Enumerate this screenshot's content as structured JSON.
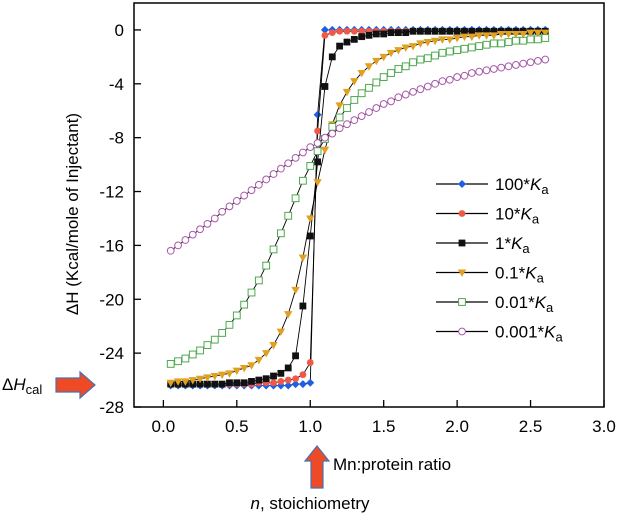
{
  "chart_data": {
    "type": "scatter",
    "xlabel": "Mn:protein ratio",
    "ylabel": "ΔH (Kcal/mole of Injectant)",
    "xlim": [
      -0.2,
      3.0
    ],
    "ylim": [
      -28,
      2
    ],
    "x_ticks": [
      "0.0",
      "0.5",
      "1.0",
      "1.5",
      "2.0",
      "2.5",
      "3.0"
    ],
    "x_tick_values": [
      0,
      0.5,
      1.0,
      1.5,
      2.0,
      2.5,
      3.0
    ],
    "y_ticks": [
      "0",
      "-4",
      "-8",
      "-12",
      "-16",
      "-20",
      "-24",
      "-28"
    ],
    "y_tick_values": [
      0,
      -4,
      -8,
      -12,
      -16,
      -20,
      -24,
      -28
    ],
    "grid": false,
    "legend_position": "right",
    "annotations": {
      "dh_cal": {
        "prefix": "Δ",
        "italic": "H",
        "sub": "cal",
        "y_value": -26.1
      },
      "stoichiometry": {
        "italic": "n",
        "text": ", stoichiometry",
        "x_value": 1.0
      }
    },
    "x": [
      0.05,
      0.1,
      0.15,
      0.2,
      0.25,
      0.3,
      0.35,
      0.4,
      0.45,
      0.5,
      0.55,
      0.6,
      0.65,
      0.7,
      0.75,
      0.8,
      0.85,
      0.9,
      0.95,
      1.0,
      1.05,
      1.1,
      1.15,
      1.2,
      1.25,
      1.3,
      1.35,
      1.4,
      1.45,
      1.5,
      1.55,
      1.6,
      1.65,
      1.7,
      1.75,
      1.8,
      1.85,
      1.9,
      1.95,
      2.0,
      2.05,
      2.1,
      2.15,
      2.2,
      2.25,
      2.3,
      2.35,
      2.4,
      2.45,
      2.5,
      2.55,
      2.6
    ],
    "series": [
      {
        "name": "100*",
        "ka": "K",
        "sub": "a",
        "color": "#1f5fe0",
        "marker": "diamond-filled",
        "values": [
          -26.4,
          -26.4,
          -26.4,
          -26.4,
          -26.4,
          -26.4,
          -26.4,
          -26.4,
          -26.4,
          -26.4,
          -26.4,
          -26.4,
          -26.4,
          -26.4,
          -26.4,
          -26.4,
          -26.4,
          -26.3,
          -26.3,
          -26.2,
          -6.3,
          0,
          0,
          0,
          0,
          0,
          0,
          0,
          0,
          0,
          0,
          0,
          0,
          0,
          0,
          0,
          0,
          0,
          0,
          0,
          0,
          0,
          0,
          0,
          0,
          0,
          0,
          0,
          0,
          0,
          0,
          0
        ]
      },
      {
        "name": "10*",
        "ka": "K",
        "sub": "a",
        "color": "#ee5a45",
        "marker": "circle-filled",
        "values": [
          -26.3,
          -26.3,
          -26.3,
          -26.3,
          -26.3,
          -26.3,
          -26.3,
          -26.3,
          -26.3,
          -26.3,
          -26.3,
          -26.3,
          -26.2,
          -26.2,
          -26.2,
          -26.1,
          -26.0,
          -25.9,
          -25.6,
          -24.7,
          -7.5,
          -0.4,
          -0.2,
          -0.1,
          -0.1,
          -0.1,
          -0.1,
          -0.1,
          -0.1,
          -0.1,
          -0.1,
          -0.1,
          -0.1,
          -0.1,
          -0.1,
          -0.1,
          -0.1,
          -0.1,
          -0.1,
          -0.1,
          -0.1,
          -0.1,
          -0.1,
          -0.1,
          -0.1,
          -0.1,
          -0.1,
          -0.1,
          -0.1,
          -0.1,
          -0.1,
          -0.1
        ]
      },
      {
        "name": "1*",
        "ka": "K",
        "sub": "a",
        "color": "#111111",
        "marker": "square-filled",
        "values": [
          -26.3,
          -26.3,
          -26.3,
          -26.3,
          -26.3,
          -26.3,
          -26.3,
          -26.3,
          -26.2,
          -26.2,
          -26.2,
          -26.1,
          -26.0,
          -25.9,
          -25.7,
          -25.5,
          -25.1,
          -24.2,
          -20.5,
          -15.3,
          -9.8,
          -4.2,
          -2.0,
          -1.2,
          -0.9,
          -0.7,
          -0.5,
          -0.4,
          -0.3,
          -0.3,
          -0.2,
          -0.2,
          -0.2,
          -0.1,
          -0.1,
          -0.1,
          -0.1,
          -0.1,
          -0.1,
          -0.1,
          -0.1,
          -0.1,
          -0.1,
          -0.1,
          -0.1,
          -0.1,
          -0.1,
          -0.1,
          -0.1,
          -0.1,
          -0.1,
          -0.1
        ]
      },
      {
        "name": "0.1*",
        "ka": "K",
        "sub": "a",
        "color": "#e0a020",
        "marker": "triangle-down-filled",
        "values": [
          -26.2,
          -26.1,
          -26.1,
          -26.0,
          -25.9,
          -25.8,
          -25.7,
          -25.6,
          -25.5,
          -25.3,
          -25.1,
          -24.9,
          -24.5,
          -24.0,
          -23.4,
          -22.4,
          -21.1,
          -19.3,
          -16.9,
          -14.0,
          -11.3,
          -8.9,
          -7.0,
          -5.6,
          -4.6,
          -3.8,
          -3.2,
          -2.7,
          -2.3,
          -2.0,
          -1.7,
          -1.5,
          -1.3,
          -1.2,
          -1.0,
          -0.9,
          -0.8,
          -0.7,
          -0.7,
          -0.6,
          -0.5,
          -0.5,
          -0.4,
          -0.4,
          -0.4,
          -0.3,
          -0.3,
          -0.3,
          -0.3,
          -0.2,
          -0.2,
          -0.2
        ]
      },
      {
        "name": "0.01*",
        "ka": "K",
        "sub": "a",
        "color": "#4fa84f",
        "marker": "square-open",
        "values": [
          -24.8,
          -24.6,
          -24.4,
          -24.1,
          -23.8,
          -23.4,
          -23.0,
          -22.5,
          -21.9,
          -21.2,
          -20.4,
          -19.5,
          -18.6,
          -17.5,
          -16.3,
          -15.1,
          -13.8,
          -12.5,
          -11.2,
          -10.1,
          -9.0,
          -8.1,
          -7.2,
          -6.5,
          -5.8,
          -5.2,
          -4.7,
          -4.3,
          -3.9,
          -3.5,
          -3.2,
          -2.9,
          -2.7,
          -2.4,
          -2.2,
          -2.1,
          -1.9,
          -1.7,
          -1.6,
          -1.5,
          -1.4,
          -1.3,
          -1.2,
          -1.1,
          -1.0,
          -1.0,
          -0.9,
          -0.8,
          -0.8,
          -0.7,
          -0.7,
          -0.6
        ]
      },
      {
        "name": "0.001*",
        "ka": "K",
        "sub": "a",
        "color": "#a85aa8",
        "marker": "circle-open",
        "values": [
          -16.4,
          -16.0,
          -15.6,
          -15.2,
          -14.8,
          -14.4,
          -14.0,
          -13.5,
          -13.1,
          -12.7,
          -12.3,
          -11.9,
          -11.5,
          -11.1,
          -10.7,
          -10.3,
          -9.9,
          -9.5,
          -9.1,
          -8.7,
          -8.4,
          -8.0,
          -7.7,
          -7.3,
          -7.0,
          -6.7,
          -6.4,
          -6.1,
          -5.8,
          -5.5,
          -5.3,
          -5.0,
          -4.8,
          -4.6,
          -4.4,
          -4.2,
          -4.0,
          -3.8,
          -3.7,
          -3.5,
          -3.4,
          -3.2,
          -3.1,
          -3.0,
          -2.9,
          -2.8,
          -2.7,
          -2.6,
          -2.5,
          -2.4,
          -2.3,
          -2.2
        ]
      }
    ]
  }
}
